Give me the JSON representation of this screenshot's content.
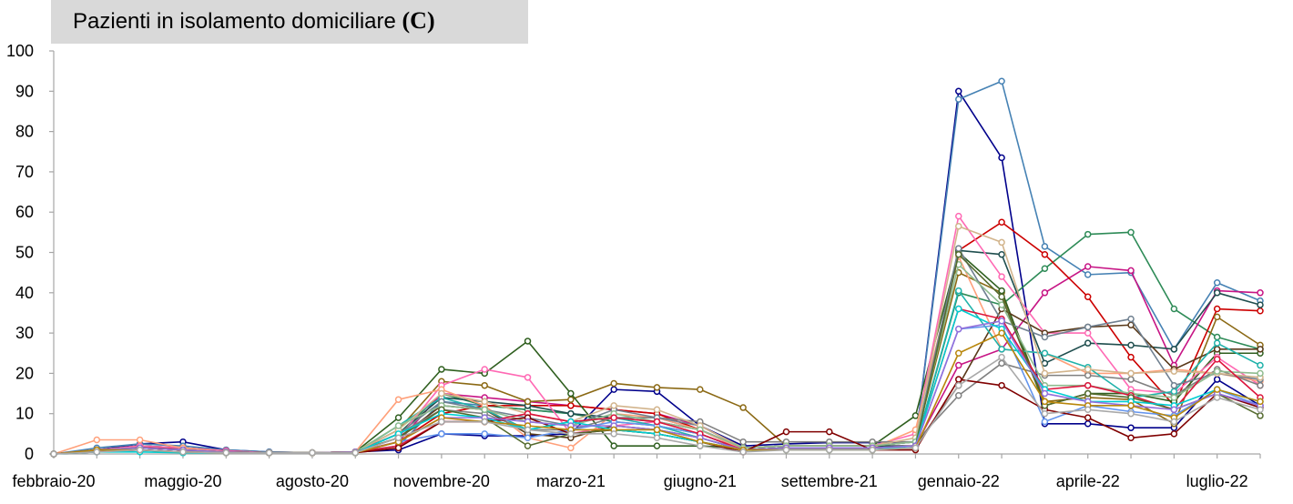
{
  "title": {
    "text": "Pazienti in isolamento domiciliare",
    "suffix": "(C)"
  },
  "chart_data": {
    "type": "line",
    "title": "Pazienti in isolamento domiciliare (C)",
    "xlabel": "",
    "ylabel": "",
    "ylim": [
      0,
      100
    ],
    "yticks": [
      0,
      10,
      20,
      30,
      40,
      50,
      60,
      70,
      80,
      90,
      100
    ],
    "grid": false,
    "legend": "none",
    "x_tick_labels": [
      {
        "label": "febbraio-20",
        "index": 0
      },
      {
        "label": "maggio-20",
        "index": 3
      },
      {
        "label": "agosto-20",
        "index": 6
      },
      {
        "label": "novembre-20",
        "index": 9
      },
      {
        "label": "marzo-21",
        "index": 12
      },
      {
        "label": "giugno-21",
        "index": 15
      },
      {
        "label": "settembre-21",
        "index": 18
      },
      {
        "label": "gennaio-22",
        "index": 21
      },
      {
        "label": "aprile-22",
        "index": 24
      },
      {
        "label": "luglio-22",
        "index": 27
      }
    ],
    "x": [
      0,
      1,
      2,
      3,
      4,
      5,
      6,
      7,
      8,
      9,
      10,
      11,
      12,
      13,
      14,
      15,
      16,
      17,
      18,
      19,
      20,
      21,
      22,
      23,
      24,
      25,
      26,
      27,
      28
    ],
    "series": [
      {
        "color": "#00008b",
        "values": [
          0,
          1,
          2.5,
          3,
          1,
          0.5,
          0.3,
          0.5,
          1,
          5,
          4.5,
          4.5,
          5,
          16,
          15.5,
          7,
          2,
          2.5,
          2.8,
          2.8,
          3,
          90,
          73.5,
          7.5,
          7.5,
          6.5,
          6.5,
          18.5,
          12
        ]
      },
      {
        "color": "#4682b4",
        "values": [
          0,
          1.5,
          2.5,
          2,
          1,
          0.5,
          0.3,
          0.5,
          2,
          13,
          12,
          11,
          10,
          9,
          9,
          6,
          1.5,
          2,
          2,
          2,
          3,
          88,
          92.5,
          51.5,
          44.5,
          45,
          26,
          42.5,
          38
        ]
      },
      {
        "color": "#2e8b57",
        "values": [
          0,
          1,
          2,
          1,
          0.5,
          0.3,
          0.3,
          0.5,
          5,
          15,
          12,
          11,
          10,
          8,
          7,
          5,
          1,
          1.5,
          1.5,
          1.5,
          2,
          40,
          37,
          46,
          54.5,
          55,
          36,
          29,
          26
        ]
      },
      {
        "color": "#c71585",
        "values": [
          0,
          1,
          2,
          1.5,
          0.8,
          0.3,
          0.3,
          0.5,
          3,
          15,
          14,
          13,
          12,
          11,
          10,
          7,
          1.5,
          2,
          2,
          2,
          2,
          22,
          26,
          40,
          46.5,
          45.5,
          22,
          40.5,
          40
        ]
      },
      {
        "color": "#cc0000",
        "values": [
          0,
          1,
          1.5,
          1.5,
          0.5,
          0.3,
          0.3,
          0.5,
          3,
          10,
          12,
          12,
          12,
          11,
          10,
          6,
          1,
          1.5,
          1.5,
          1.5,
          2,
          50.5,
          57.5,
          49.5,
          39,
          24,
          12,
          36,
          35.5
        ]
      },
      {
        "color": "#1f4e4e",
        "values": [
          0,
          1,
          2,
          1.5,
          0.8,
          0.3,
          0.3,
          0.5,
          5,
          14,
          13,
          12,
          10,
          9,
          8,
          6,
          1.5,
          2,
          2,
          2,
          2,
          50.5,
          49.5,
          22.5,
          27.5,
          27,
          26,
          40,
          37
        ]
      },
      {
        "color": "#8b6914",
        "values": [
          0,
          1,
          2,
          1.5,
          0.8,
          0.3,
          0.3,
          0.5,
          6,
          18,
          17,
          13,
          13.5,
          17.5,
          16.5,
          16,
          11.5,
          2,
          2,
          2,
          3,
          45,
          40,
          13,
          14,
          13.5,
          7.5,
          34,
          27
        ]
      },
      {
        "color": "#2f5f1f",
        "values": [
          0,
          1,
          2,
          1.5,
          0.8,
          0.3,
          0.3,
          0.5,
          9,
          21,
          20,
          28,
          15,
          2,
          2,
          2,
          1.5,
          2,
          2,
          2,
          9.5,
          50,
          40.5,
          12,
          15,
          15,
          13,
          25,
          25
        ]
      },
      {
        "color": "#ff69b4",
        "values": [
          0,
          1,
          2,
          1.5,
          0.8,
          0.3,
          0.3,
          0.5,
          4,
          17,
          21,
          19,
          5,
          7,
          8,
          6,
          1.5,
          2,
          2,
          2,
          5,
          59,
          44,
          30,
          30,
          16,
          15,
          24,
          17
        ]
      },
      {
        "color": "#ffa07a",
        "values": [
          0,
          3.5,
          3.5,
          1.5,
          0.5,
          0.3,
          0.3,
          0.5,
          13.5,
          16,
          12,
          4,
          1.5,
          10,
          9,
          6,
          1,
          1.5,
          1.5,
          1.5,
          6,
          49,
          26,
          25,
          20,
          20,
          21,
          20,
          18
        ]
      },
      {
        "color": "#5a3a1a",
        "values": [
          0,
          1,
          1.5,
          1,
          0.5,
          0.3,
          0.3,
          0.5,
          4,
          12,
          11,
          5,
          4,
          7,
          6,
          4,
          1,
          1.5,
          1.5,
          1.5,
          2,
          17,
          36,
          30,
          31.5,
          32,
          21,
          26,
          26
        ]
      },
      {
        "color": "#808080",
        "values": [
          0,
          1,
          1.5,
          1,
          0.5,
          0.3,
          0.3,
          0.5,
          5,
          11,
          10,
          6,
          6,
          9,
          9,
          8,
          3,
          3,
          3,
          3,
          3,
          14.5,
          22.5,
          19.5,
          19.5,
          18.5,
          14.5,
          21,
          17
        ]
      },
      {
        "color": "#20b2aa",
        "values": [
          0,
          1,
          1,
          0.3,
          0.3,
          0.3,
          0.3,
          0.3,
          7,
          14,
          11,
          6,
          8,
          9,
          7,
          4,
          1,
          1.5,
          1.5,
          1.5,
          2,
          40.5,
          26,
          25,
          21.5,
          14,
          15.5,
          27.5,
          22
        ]
      },
      {
        "color": "#6495ed",
        "values": [
          0,
          0.5,
          1,
          0.5,
          0.3,
          0.3,
          0.3,
          0.3,
          3,
          5,
          5,
          4,
          6,
          8,
          7,
          5,
          1,
          1.5,
          1.5,
          1.5,
          2,
          31,
          32,
          8,
          12,
          10.5,
          9.5,
          16,
          12
        ]
      },
      {
        "color": "#708090",
        "values": [
          0,
          1,
          1.5,
          1,
          0.5,
          0.3,
          0.3,
          0.5,
          5,
          13,
          11,
          9,
          7,
          11,
          9,
          7,
          1.5,
          2,
          2,
          2,
          3,
          51,
          33,
          29,
          31.5,
          33.5,
          17,
          20,
          18.5
        ]
      },
      {
        "color": "#d2b48c",
        "values": [
          0,
          1,
          1.5,
          1,
          0.5,
          0.3,
          0.3,
          0.5,
          6,
          15,
          13,
          10,
          8,
          12,
          11,
          7,
          1.5,
          2,
          2,
          2,
          4,
          56.5,
          52.5,
          20,
          21,
          20,
          20.5,
          20,
          19
        ]
      },
      {
        "color": "#8fbc8f",
        "values": [
          0,
          1,
          1.5,
          1,
          0.5,
          0.3,
          0.3,
          0.5,
          7,
          12,
          11,
          8,
          7,
          10,
          8,
          6,
          1.5,
          2,
          2,
          2,
          3,
          47,
          37,
          17,
          17,
          15,
          14,
          20.5,
          20
        ]
      },
      {
        "color": "#dc143c",
        "values": [
          0,
          1,
          1.5,
          1,
          0.5,
          0.3,
          0.3,
          0.5,
          2,
          8,
          8,
          10,
          8,
          9,
          8,
          5,
          1,
          1.5,
          1.5,
          1.5,
          2,
          36,
          33.5,
          16,
          17,
          14.5,
          11,
          23.5,
          14
        ]
      },
      {
        "color": "#800000",
        "values": [
          0,
          0.5,
          1,
          0.5,
          0.3,
          0.3,
          0.3,
          0.3,
          1.5,
          8,
          8,
          9,
          5,
          6,
          5,
          3,
          0.5,
          5.5,
          5.5,
          1,
          1,
          18.5,
          17,
          11,
          9,
          4,
          5,
          15,
          11.5
        ]
      },
      {
        "color": "#556b2f",
        "values": [
          0,
          1,
          1.5,
          1,
          0.5,
          0.3,
          0.3,
          0.5,
          4,
          11,
          9,
          2,
          5,
          6,
          5,
          3,
          1,
          1.5,
          1.5,
          1.5,
          2,
          49.5,
          39,
          12,
          15,
          14,
          11,
          15,
          9.5
        ]
      },
      {
        "color": "#00ced1",
        "values": [
          0,
          0.5,
          0.5,
          0.3,
          0.3,
          0.3,
          0.3,
          0.3,
          5,
          10,
          9,
          6,
          8,
          6,
          5,
          3,
          1,
          1,
          1,
          1,
          2,
          36,
          31,
          16,
          13,
          13,
          12,
          16,
          13
        ]
      },
      {
        "color": "#9370db",
        "values": [
          0,
          1,
          1.5,
          1,
          0.5,
          0.3,
          0.3,
          0.5,
          3,
          9,
          9,
          8,
          7,
          7,
          6,
          4,
          1,
          1.5,
          1.5,
          1.5,
          2,
          31,
          33,
          15,
          13,
          12,
          11,
          15,
          12
        ]
      },
      {
        "color": "#b8860b",
        "values": [
          0,
          1,
          1,
          0.5,
          0.3,
          0.3,
          0.3,
          0.3,
          3,
          9,
          8,
          7,
          6,
          6,
          6,
          3,
          1,
          1,
          1,
          1,
          1.5,
          25,
          30,
          13,
          12,
          12,
          9,
          16,
          13
        ]
      },
      {
        "color": "#a9a9a9",
        "values": [
          0,
          0.5,
          1,
          0.5,
          0.3,
          0.3,
          0.3,
          0.3,
          4,
          8,
          8,
          6,
          5,
          5,
          4,
          2,
          0.5,
          1,
          1,
          1,
          1.5,
          17,
          24,
          10,
          11,
          10,
          8,
          14,
          11
        ]
      }
    ]
  }
}
